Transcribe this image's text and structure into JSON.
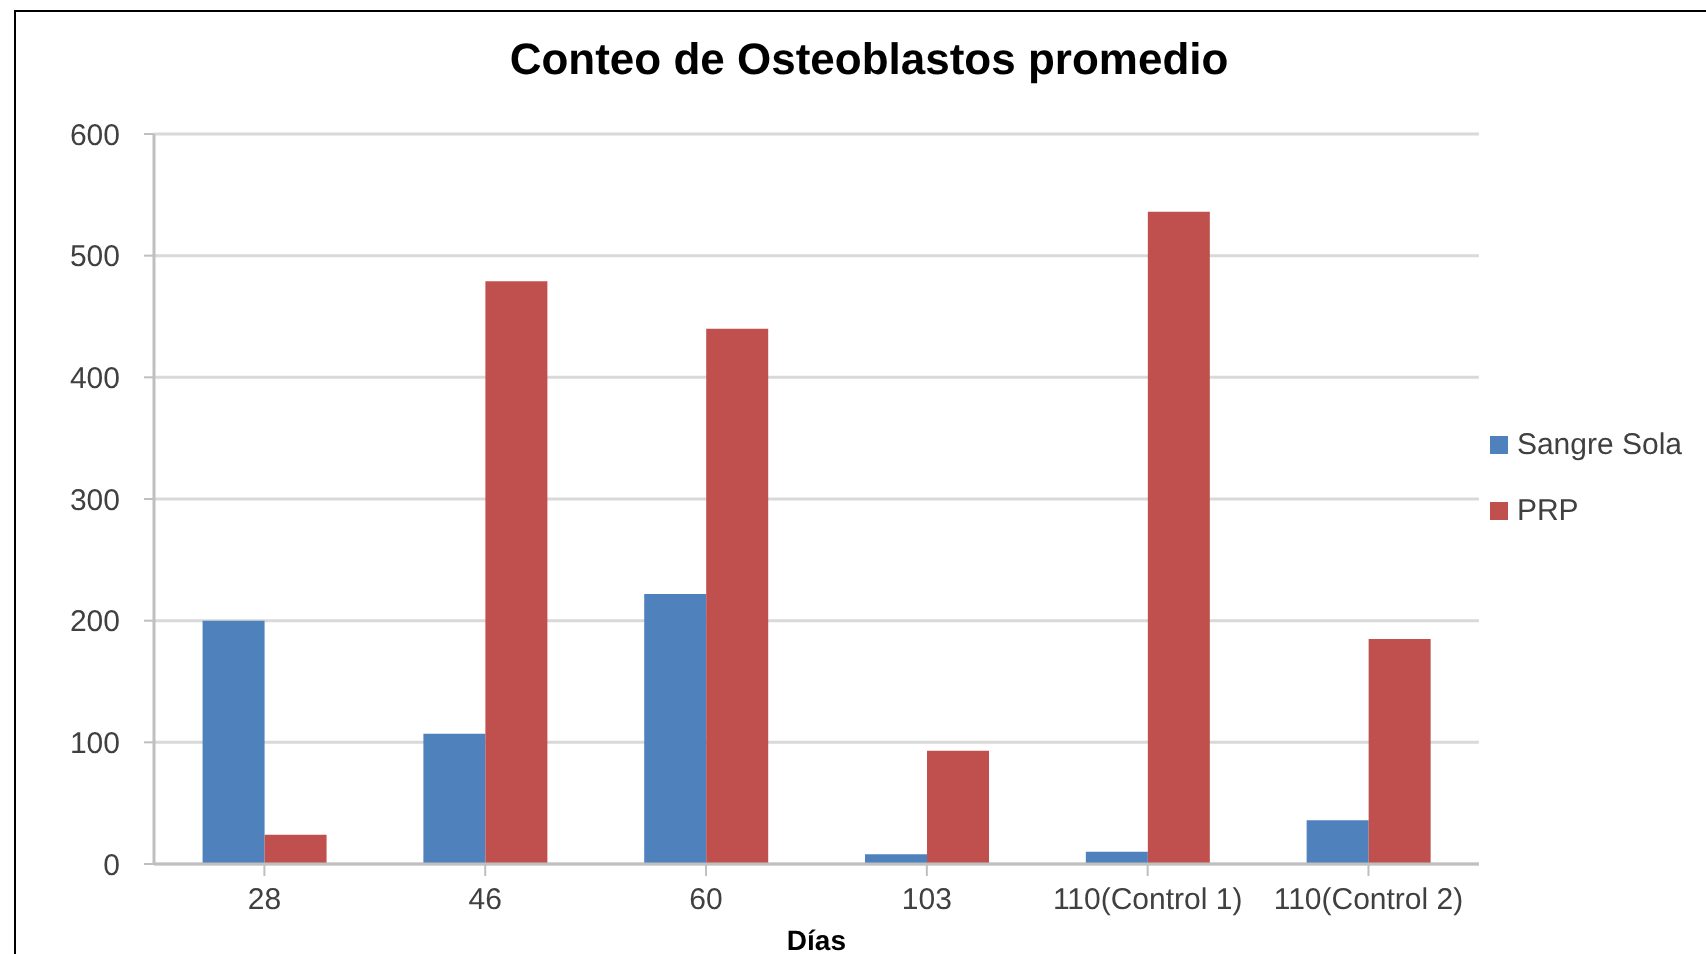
{
  "chart_data": {
    "type": "bar",
    "title": "Conteo de Osteoblastos promedio",
    "xlabel": "Días",
    "categories": [
      "28",
      "46",
      "60",
      "103",
      "110(Control 1)",
      "110(Control 2)"
    ],
    "series": [
      {
        "name": "Sangre Sola",
        "color": "#4f81bd",
        "values": [
          200,
          107,
          222,
          8,
          10,
          36
        ]
      },
      {
        "name": "PRP",
        "color": "#c0504d",
        "values": [
          24,
          479,
          440,
          93,
          536,
          185
        ]
      }
    ],
    "ylim": [
      0,
      600
    ],
    "yticks": [
      0,
      100,
      200,
      300,
      400,
      500,
      600
    ],
    "grid": "y",
    "legend": "right"
  }
}
